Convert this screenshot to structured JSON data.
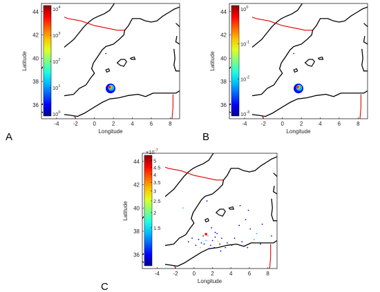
{
  "panels": [
    {
      "letter": "A",
      "xlabel": "Longitude",
      "ylabel": "Latitude",
      "xticks": [
        "-4",
        "-2",
        "0",
        "2",
        "4",
        "6",
        "8"
      ],
      "yticks": [
        "36",
        "38",
        "40",
        "42",
        "44"
      ],
      "colorbar": {
        "scale": "log",
        "ticks": [
          {
            "base": "10",
            "exp": "0"
          },
          {
            "base": "10",
            "exp": "1"
          },
          {
            "base": "10",
            "exp": "2"
          },
          {
            "base": "10",
            "exp": "3"
          },
          {
            "base": "10",
            "exp": "4"
          }
        ]
      }
    },
    {
      "letter": "B",
      "xlabel": "Longitude",
      "ylabel": "Latitude",
      "xticks": [
        "-4",
        "-2",
        "0",
        "2",
        "4",
        "6",
        "8"
      ],
      "yticks": [
        "36",
        "38",
        "40",
        "42",
        "44"
      ],
      "colorbar": {
        "scale": "log",
        "ticks": [
          {
            "base": "10",
            "exp": "-3"
          },
          {
            "base": "10",
            "exp": "-2"
          },
          {
            "base": "10",
            "exp": "-1"
          },
          {
            "base": "10",
            "exp": "0"
          }
        ]
      }
    },
    {
      "letter": "C",
      "xlabel": "Longitude",
      "ylabel": "Latitude",
      "xticks": [
        "-4",
        "-2",
        "0",
        "2",
        "4",
        "6",
        "8"
      ],
      "yticks": [
        "36",
        "38",
        "40",
        "42",
        "44"
      ],
      "colorbar": {
        "scale": "linear",
        "multiplier": {
          "base": "×10",
          "exp": "-7"
        },
        "ticks": [
          "1.5",
          "2",
          "2.5",
          "3",
          "3.5",
          "4",
          "4.5",
          "5"
        ]
      }
    }
  ],
  "colors": {
    "coastline": "#000000",
    "borders": "#e00000",
    "background": "#ffffff"
  }
}
